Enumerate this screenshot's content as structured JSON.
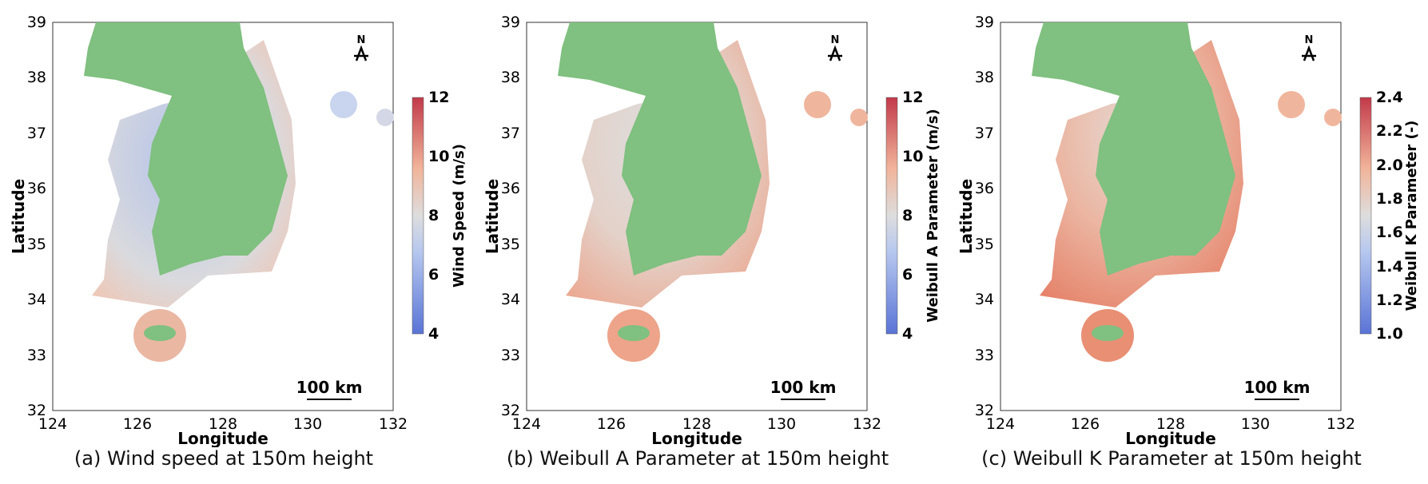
{
  "panels": [
    {
      "caption": "(a) Wind speed at 150m height",
      "xlabel": "Longitude",
      "ylabel": "Latitude",
      "colorbar": {
        "label": "Wind Speed (m/s)",
        "ticks": [
          "4",
          "6",
          "8",
          "10",
          "12"
        ]
      },
      "scale_bar": "100 km",
      "north_symbol": "N"
    },
    {
      "caption": "(b) Weibull A Parameter at 150m height",
      "xlabel": "Longitude",
      "ylabel": "Latitude",
      "colorbar": {
        "label": "Weibull A Parameter (m/s)",
        "ticks": [
          "4",
          "6",
          "8",
          "10",
          "12"
        ]
      },
      "scale_bar": "100 km",
      "north_symbol": "N"
    },
    {
      "caption": "(c) Weibull K Parameter at 150m height",
      "xlabel": "Longitude",
      "ylabel": "Latitude",
      "colorbar": {
        "label": "Weibull K Parameter (-)",
        "ticks": [
          "1.0",
          "1.2",
          "1.4",
          "1.6",
          "1.8",
          "2.0",
          "2.2",
          "2.4"
        ]
      },
      "scale_bar": "100 km",
      "north_symbol": "N"
    }
  ],
  "x_ticks": [
    "124",
    "126",
    "128",
    "130",
    "132"
  ],
  "y_ticks": [
    "39",
    "38",
    "37",
    "36",
    "35",
    "34",
    "33",
    "32"
  ],
  "colors": {
    "land": "#80c080",
    "low": "#6d8ee3",
    "mid": "#dcdcdc",
    "high": "#e8896e"
  }
}
